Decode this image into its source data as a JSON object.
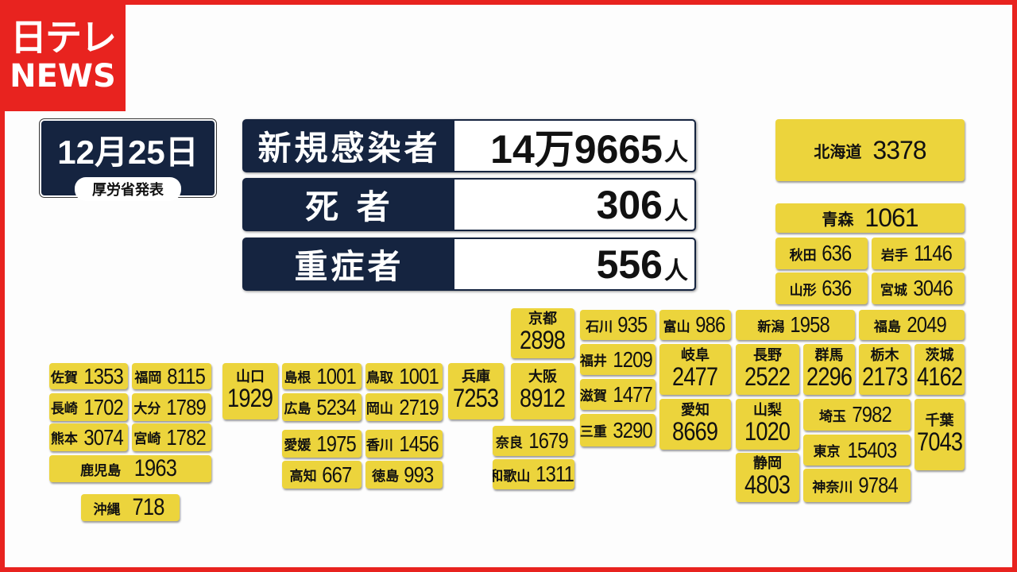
{
  "brand": {
    "logo_line1": "日テレ",
    "logo_line2": "NEWS",
    "brand_color": "#e8231f"
  },
  "header": {
    "date": "12月25日",
    "source": "厚労省発表"
  },
  "stats": [
    {
      "label": "新規感染者",
      "value": "14万9665",
      "unit": "人"
    },
    {
      "label": "死 者",
      "value": "306",
      "unit": "人"
    },
    {
      "label": "重症者",
      "value": "556",
      "unit": "人"
    }
  ],
  "colors": {
    "navy": "#152440",
    "tile": "#ecd43c"
  },
  "prefectures": [
    {
      "name": "北海道",
      "value": "3378"
    },
    {
      "name": "青森",
      "value": "1061"
    },
    {
      "name": "秋田",
      "value": "636"
    },
    {
      "name": "岩手",
      "value": "1146"
    },
    {
      "name": "山形",
      "value": "636"
    },
    {
      "name": "宮城",
      "value": "3046"
    },
    {
      "name": "京都",
      "value": "2898"
    },
    {
      "name": "石川",
      "value": "935"
    },
    {
      "name": "富山",
      "value": "986"
    },
    {
      "name": "新潟",
      "value": "1958"
    },
    {
      "name": "福島",
      "value": "2049"
    },
    {
      "name": "福井",
      "value": "1209"
    },
    {
      "name": "岐阜",
      "value": "2477"
    },
    {
      "name": "長野",
      "value": "2522"
    },
    {
      "name": "群馬",
      "value": "2296"
    },
    {
      "name": "栃木",
      "value": "2173"
    },
    {
      "name": "茨城",
      "value": "4162"
    },
    {
      "name": "兵庫",
      "value": "7253"
    },
    {
      "name": "大阪",
      "value": "8912"
    },
    {
      "name": "滋賀",
      "value": "1477"
    },
    {
      "name": "三重",
      "value": "3290"
    },
    {
      "name": "愛知",
      "value": "8669"
    },
    {
      "name": "山梨",
      "value": "1020"
    },
    {
      "name": "埼玉",
      "value": "7982"
    },
    {
      "name": "千葉",
      "value": "7043"
    },
    {
      "name": "東京",
      "value": "15403"
    },
    {
      "name": "奈良",
      "value": "1679"
    },
    {
      "name": "和歌山",
      "value": "1311"
    },
    {
      "name": "静岡",
      "value": "4803"
    },
    {
      "name": "神奈川",
      "value": "9784"
    },
    {
      "name": "山口",
      "value": "1929"
    },
    {
      "name": "島根",
      "value": "1001"
    },
    {
      "name": "鳥取",
      "value": "1001"
    },
    {
      "name": "広島",
      "value": "5234"
    },
    {
      "name": "岡山",
      "value": "2719"
    },
    {
      "name": "愛媛",
      "value": "1975"
    },
    {
      "name": "香川",
      "value": "1456"
    },
    {
      "name": "高知",
      "value": "667"
    },
    {
      "name": "徳島",
      "value": "993"
    },
    {
      "name": "佐賀",
      "value": "1353"
    },
    {
      "name": "福岡",
      "value": "8115"
    },
    {
      "name": "長崎",
      "value": "1702"
    },
    {
      "name": "大分",
      "value": "1789"
    },
    {
      "name": "熊本",
      "value": "3074"
    },
    {
      "name": "宮崎",
      "value": "1782"
    },
    {
      "name": "鹿児島",
      "value": "1963"
    },
    {
      "name": "沖縄",
      "value": "718"
    }
  ]
}
